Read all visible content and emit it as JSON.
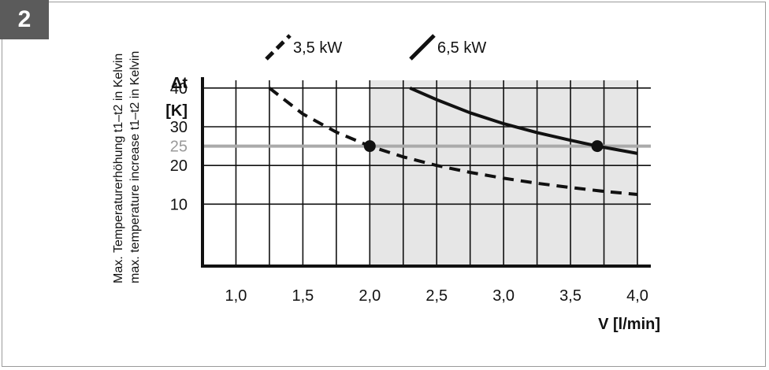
{
  "figure_number": "2",
  "chart_data": {
    "type": "line",
    "y_axis_label_de": "Max. Temperaturerhöhung t1–t2 in Kelvin",
    "y_axis_label_en": "max. temperature increase t1–t2 in Kelvin",
    "y_symbol": "Δt",
    "y_unit": "[K]",
    "x_axis_label": "V [l/min]",
    "x_ticks": [
      "1,0",
      "1,5",
      "2,0",
      "2,5",
      "3,0",
      "3,5",
      "4,0"
    ],
    "y_ticks": [
      "10",
      "20",
      "30",
      "40"
    ],
    "xlim": [
      0.75,
      4.1
    ],
    "ylim": [
      -6,
      42
    ],
    "reference_line": {
      "y": 25,
      "label": "25",
      "color": "#aaaaaa"
    },
    "shaded_region": {
      "x_from": 2.0,
      "x_to": 4.0,
      "color": "#e6e6e6"
    },
    "grid": true,
    "series": [
      {
        "name": "3,5 kW",
        "style": "dashed",
        "x": [
          1.25,
          1.5,
          1.75,
          2.0,
          2.25,
          2.5,
          2.75,
          3.0,
          3.25,
          3.5,
          3.75,
          4.0
        ],
        "y": [
          40,
          33.3,
          28.6,
          25,
          22.2,
          20,
          18.2,
          16.7,
          15.4,
          14.3,
          13.3,
          12.5
        ],
        "marker": {
          "x": 2.0,
          "y": 25
        }
      },
      {
        "name": "6,5 kW",
        "style": "solid",
        "x": [
          2.3,
          2.5,
          2.75,
          3.0,
          3.25,
          3.5,
          3.7,
          4.0
        ],
        "y": [
          40,
          37,
          33.6,
          30.8,
          28.5,
          26.5,
          25,
          23.1
        ],
        "marker": {
          "x": 3.7,
          "y": 25
        }
      }
    ]
  }
}
